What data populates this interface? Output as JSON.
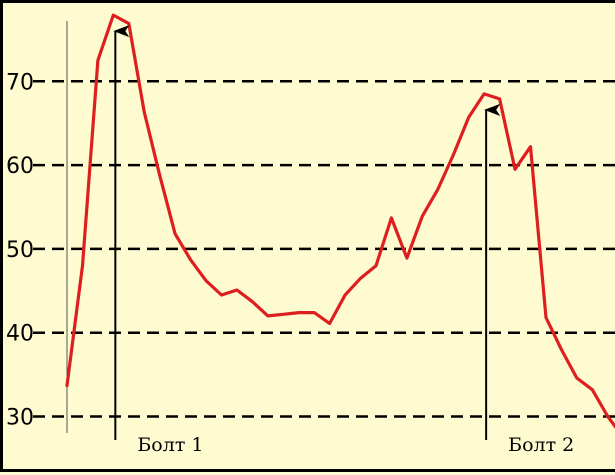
{
  "chart_data": {
    "type": "line",
    "title": "",
    "xlabel": "",
    "ylabel": "",
    "ylim": [
      27,
      78
    ],
    "yticks": [
      30,
      40,
      50,
      60,
      70
    ],
    "grid": "horizontal dashed",
    "series": [
      {
        "color": "#dd1f1f",
        "x": [
          0,
          1,
          2,
          3,
          4,
          5,
          6,
          7,
          8,
          9,
          10,
          11,
          12,
          13,
          14,
          15,
          16,
          17,
          18,
          19,
          20,
          21,
          22,
          23,
          24,
          25,
          26,
          27,
          28,
          29,
          30,
          31,
          32,
          33,
          34,
          35,
          36
        ],
        "y": [
          33.7,
          48.0,
          72.5,
          77.9,
          76.9,
          66.3,
          58.8,
          51.8,
          48.7,
          46.2,
          44.5,
          45.1,
          43.7,
          42.0,
          42.2,
          42.4,
          42.4,
          41.1,
          44.5,
          46.5,
          48.0,
          53.7,
          48.9,
          53.9,
          57.1,
          61.2,
          65.7,
          68.5,
          67.9,
          59.5,
          62.2,
          41.8,
          38.0,
          34.6,
          33.2,
          30.0,
          27.5
        ]
      }
    ],
    "annotations": [
      {
        "label": "Болт 1",
        "x": 3,
        "y": 77.9,
        "style": "arrow"
      },
      {
        "label": "Болт 2",
        "x": 27,
        "y": 68.5,
        "style": "arrow"
      }
    ]
  }
}
